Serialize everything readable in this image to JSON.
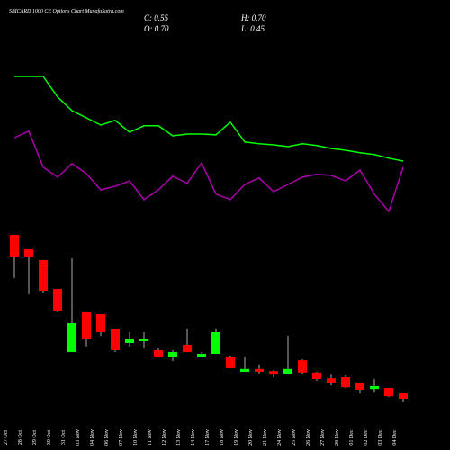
{
  "chart_data": {
    "type": "candlestick",
    "title": "SBICARD 1000 CE Options Chart MunafaSutra.com",
    "close_label": "C: 0.55",
    "high_label": "H: 0.70",
    "open_label": "O: 0.70",
    "low_label": "L: 0.45",
    "categories": [
      "27 Oct",
      "28 Oct",
      "29 Oct",
      "30 Oct",
      "31 Oct",
      "03 Nov",
      "04 Nov",
      "06 Nov",
      "07 Nov",
      "10 Nov",
      "11 Nov",
      "12 Nov",
      "13 Nov",
      "14 Nov",
      "17 Nov",
      "18 Nov",
      "19 Nov",
      "20 Nov",
      "21 Nov",
      "24 Nov",
      "25 Nov",
      "26 Nov",
      "27 Nov",
      "28 Nov",
      "01 Dec",
      "02 Dec",
      "03 Dec",
      "04 Dec"
    ],
    "open": [
      5.1,
      4.7,
      4.4,
      3.6,
      1.85,
      2.95,
      2.9,
      2.5,
      2.1,
      2.15,
      1.9,
      1.7,
      2.05,
      1.7,
      1.8,
      1.7,
      1.3,
      1.38,
      1.32,
      1.25,
      1.62,
      1.28,
      1.12,
      1.15,
      1.0,
      0.82,
      0.85,
      0.7
    ],
    "high": [
      5.1,
      4.7,
      4.4,
      3.6,
      4.45,
      2.95,
      2.9,
      2.5,
      2.4,
      2.4,
      1.95,
      1.9,
      2.5,
      1.85,
      2.5,
      1.75,
      1.7,
      1.5,
      1.35,
      2.3,
      1.65,
      1.3,
      1.22,
      1.2,
      1.0,
      1.1,
      0.85,
      0.7
    ],
    "low": [
      3.9,
      3.45,
      3.5,
      2.95,
      1.85,
      2.0,
      2.3,
      1.85,
      2.0,
      1.95,
      1.7,
      1.6,
      1.85,
      1.7,
      1.8,
      1.4,
      1.3,
      1.25,
      1.15,
      1.22,
      1.25,
      1.05,
      0.92,
      0.85,
      0.7,
      0.72,
      0.6,
      0.45
    ],
    "close": [
      4.5,
      4.5,
      3.55,
      3.0,
      2.65,
      2.2,
      2.4,
      1.9,
      2.2,
      2.2,
      1.7,
      1.85,
      1.85,
      1.8,
      2.4,
      1.4,
      1.38,
      1.3,
      1.22,
      1.38,
      1.28,
      1.1,
      1.0,
      0.87,
      0.8,
      0.9,
      0.62,
      0.55
    ],
    "up_color": "#00ff00",
    "down_color": "#ff0000",
    "series": [
      {
        "color": "#00ff00",
        "values": [
          9.5,
          9.5,
          9.5,
          8.93,
          8.55,
          8.35,
          8.15,
          8.28,
          7.95,
          8.13,
          8.13,
          7.85,
          7.9,
          7.9,
          7.88,
          8.23,
          7.68,
          7.63,
          7.6,
          7.55,
          7.63,
          7.58,
          7.5,
          7.45,
          7.38,
          7.33,
          7.23,
          7.15
        ]
      },
      {
        "color": "#aa00aa",
        "values": [
          7.8,
          7.98,
          6.98,
          6.7,
          7.08,
          6.8,
          6.35,
          6.45,
          6.6,
          6.08,
          6.35,
          6.73,
          6.53,
          7.1,
          6.23,
          6.08,
          6.5,
          6.68,
          6.3,
          6.5,
          6.7,
          6.78,
          6.75,
          6.6,
          6.9,
          6.23,
          5.75,
          6.98
        ]
      }
    ],
    "ylim": [
      0,
      10
    ]
  }
}
